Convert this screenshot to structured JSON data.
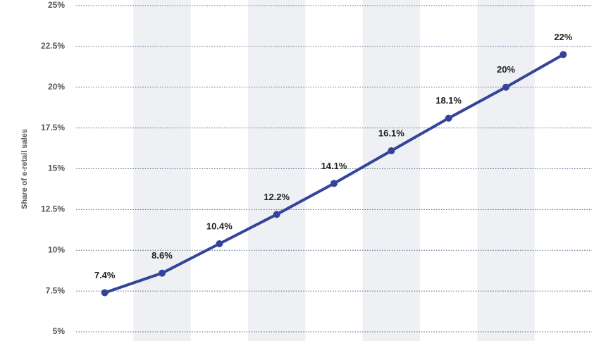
{
  "chart_data": {
    "type": "line",
    "ylabel": "Share of e-retail sales",
    "categories": [
      null,
      null,
      null,
      null,
      null,
      null,
      null,
      null,
      null
    ],
    "values": [
      7.4,
      8.6,
      10.4,
      12.2,
      14.1,
      16.1,
      18.1,
      20,
      22
    ],
    "value_labels": [
      "7.4%",
      "8.6%",
      "10.4%",
      "12.2%",
      "14.1%",
      "16.1%",
      "18.1%",
      "20%",
      "22%"
    ],
    "color": "#33449a",
    "ylim": [
      5,
      25
    ],
    "yticks": [
      {
        "value": 5,
        "label": "5%"
      },
      {
        "value": 7.5,
        "label": "7.5%"
      },
      {
        "value": 10,
        "label": "10%"
      },
      {
        "value": 12.5,
        "label": "12.5%"
      },
      {
        "value": 15,
        "label": "15%"
      },
      {
        "value": 17.5,
        "label": "17.5%"
      },
      {
        "value": 20,
        "label": "20%"
      },
      {
        "value": 22.5,
        "label": "22.5%"
      },
      {
        "value": 25,
        "label": "25%"
      }
    ],
    "grid": true
  }
}
